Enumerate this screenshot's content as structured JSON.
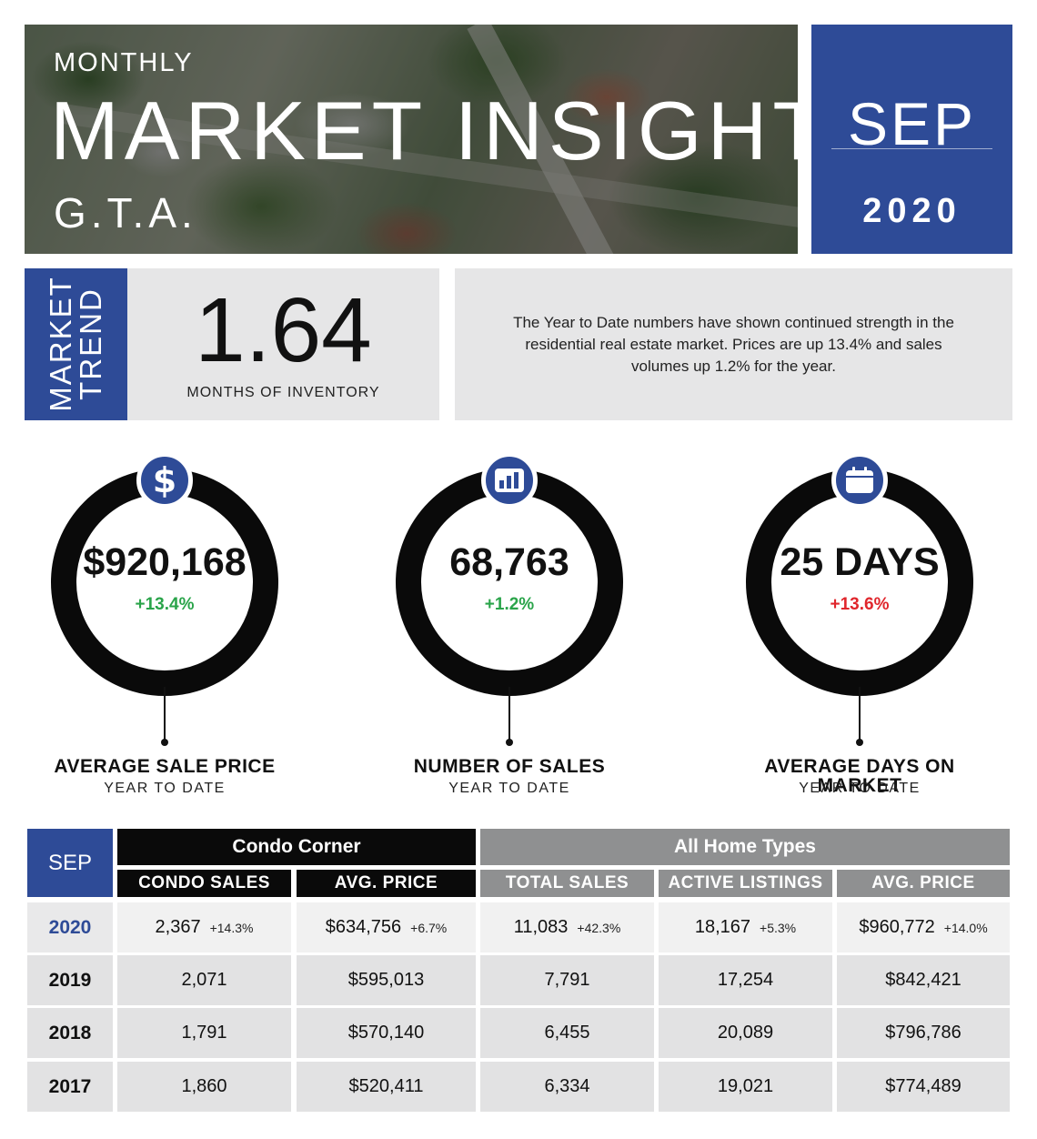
{
  "header": {
    "kicker": "MONTHLY",
    "title": "MARKET INSIGHT",
    "region": "G.T.A.",
    "month": "SEP",
    "year": "2020"
  },
  "trend": {
    "tab_line1": "MARKET",
    "tab_line2": "TREND",
    "value": "1.64",
    "caption": "MONTHS OF INVENTORY",
    "summary": "The Year to Date numbers have shown continued strength in the residential real estate market.  Prices are up 13.4% and sales volumes up 1.2% for the year."
  },
  "stats": [
    {
      "icon": "dollar-icon",
      "value": "$920,168",
      "change": "+13.4%",
      "change_color": "#2aa44a",
      "label": "AVERAGE SALE PRICE",
      "sub": "YEAR TO DATE"
    },
    {
      "icon": "bar-chart-icon",
      "value": "68,763",
      "change": "+1.2%",
      "change_color": "#2aa44a",
      "label": "NUMBER OF SALES",
      "sub": "YEAR TO DATE"
    },
    {
      "icon": "calendar-icon",
      "value": "25 DAYS",
      "change": "+13.6%",
      "change_color": "#e0262c",
      "label": "AVERAGE DAYS ON MARKET",
      "sub": "YEAR TO DATE"
    }
  ],
  "table": {
    "month": "SEP",
    "group_condo": "Condo Corner",
    "group_all": "All Home Types",
    "columns": [
      "CONDO SALES",
      "AVG. PRICE",
      "TOTAL SALES",
      "ACTIVE LISTINGS",
      "AVG. PRICE"
    ],
    "rows": [
      {
        "year": "2020",
        "cells": [
          {
            "v": "2,367",
            "c": "+14.3%"
          },
          {
            "v": "$634,756",
            "c": "+6.7%"
          },
          {
            "v": "11,083",
            "c": "+42.3%"
          },
          {
            "v": "18,167",
            "c": "+5.3%"
          },
          {
            "v": "$960,772",
            "c": "+14.0%"
          }
        ]
      },
      {
        "year": "2019",
        "cells": [
          {
            "v": "2,071"
          },
          {
            "v": "$595,013"
          },
          {
            "v": "7,791"
          },
          {
            "v": "17,254"
          },
          {
            "v": "$842,421"
          }
        ]
      },
      {
        "year": "2018",
        "cells": [
          {
            "v": "1,791"
          },
          {
            "v": "$570,140"
          },
          {
            "v": "6,455"
          },
          {
            "v": "20,089"
          },
          {
            "v": "$796,786"
          }
        ]
      },
      {
        "year": "2017",
        "cells": [
          {
            "v": "1,860"
          },
          {
            "v": "$520,411"
          },
          {
            "v": "6,334"
          },
          {
            "v": "19,021"
          },
          {
            "v": "$774,489"
          }
        ]
      }
    ]
  },
  "colors": {
    "brand_blue": "#2e4b97",
    "positive": "#2aa44a",
    "negative": "#e0262c",
    "panel_gray": "#e6e6e7",
    "header_gray": "#8f9091"
  }
}
